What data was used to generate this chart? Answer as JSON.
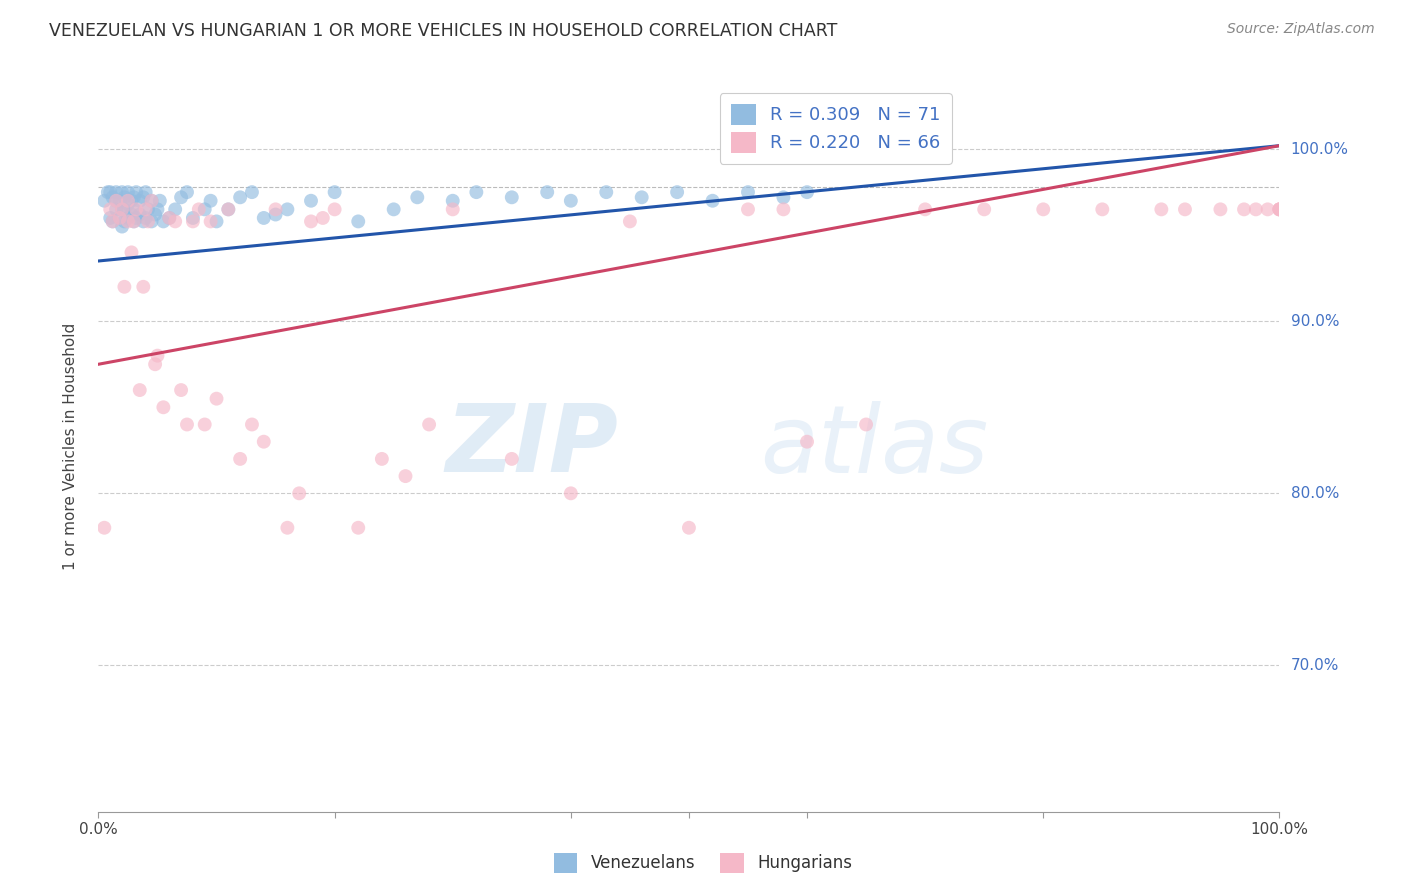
{
  "title": "VENEZUELAN VS HUNGARIAN 1 OR MORE VEHICLES IN HOUSEHOLD CORRELATION CHART",
  "source": "Source: ZipAtlas.com",
  "ylabel": "1 or more Vehicles in Household",
  "ytick_labels": [
    "100.0%",
    "90.0%",
    "80.0%",
    "70.0%"
  ],
  "ytick_values": [
    1.0,
    0.9,
    0.8,
    0.7
  ],
  "xlim": [
    0.0,
    1.0
  ],
  "ylim": [
    0.615,
    1.04
  ],
  "blue_R": 0.309,
  "blue_N": 71,
  "pink_R": 0.22,
  "pink_N": 66,
  "blue_legend": "Venezuelans",
  "pink_legend": "Hungarians",
  "blue_color": "#92bce0",
  "pink_color": "#f5b8c8",
  "blue_line_color": "#2255aa",
  "pink_line_color": "#cc4466",
  "watermark_zip": "ZIP",
  "watermark_atlas": "atlas",
  "venezuelan_x": [
    0.005,
    0.008,
    0.01,
    0.01,
    0.012,
    0.012,
    0.015,
    0.015,
    0.015,
    0.018,
    0.018,
    0.02,
    0.02,
    0.02,
    0.022,
    0.022,
    0.022,
    0.025,
    0.025,
    0.025,
    0.028,
    0.028,
    0.03,
    0.03,
    0.03,
    0.032,
    0.032,
    0.035,
    0.035,
    0.038,
    0.038,
    0.04,
    0.04,
    0.042,
    0.045,
    0.045,
    0.048,
    0.05,
    0.052,
    0.055,
    0.06,
    0.065,
    0.07,
    0.075,
    0.08,
    0.09,
    0.095,
    0.1,
    0.11,
    0.12,
    0.13,
    0.14,
    0.15,
    0.16,
    0.18,
    0.2,
    0.22,
    0.25,
    0.27,
    0.3,
    0.32,
    0.35,
    0.38,
    0.4,
    0.43,
    0.46,
    0.49,
    0.52,
    0.55,
    0.58,
    0.6
  ],
  "venezuelan_y": [
    0.97,
    0.975,
    0.96,
    0.975,
    0.958,
    0.972,
    0.965,
    0.97,
    0.975,
    0.96,
    0.97,
    0.955,
    0.965,
    0.975,
    0.958,
    0.965,
    0.972,
    0.96,
    0.968,
    0.975,
    0.962,
    0.97,
    0.958,
    0.965,
    0.972,
    0.96,
    0.975,
    0.962,
    0.97,
    0.958,
    0.972,
    0.96,
    0.975,
    0.965,
    0.958,
    0.97,
    0.962,
    0.965,
    0.97,
    0.958,
    0.96,
    0.965,
    0.972,
    0.975,
    0.96,
    0.965,
    0.97,
    0.958,
    0.965,
    0.972,
    0.975,
    0.96,
    0.962,
    0.965,
    0.97,
    0.975,
    0.958,
    0.965,
    0.972,
    0.97,
    0.975,
    0.972,
    0.975,
    0.97,
    0.975,
    0.972,
    0.975,
    0.97,
    0.975,
    0.972,
    0.975
  ],
  "hungarian_x": [
    0.005,
    0.01,
    0.012,
    0.015,
    0.018,
    0.02,
    0.022,
    0.025,
    0.025,
    0.028,
    0.03,
    0.032,
    0.035,
    0.038,
    0.04,
    0.042,
    0.045,
    0.048,
    0.05,
    0.055,
    0.06,
    0.065,
    0.07,
    0.075,
    0.08,
    0.085,
    0.09,
    0.095,
    0.1,
    0.11,
    0.12,
    0.13,
    0.14,
    0.15,
    0.16,
    0.17,
    0.18,
    0.19,
    0.2,
    0.22,
    0.24,
    0.26,
    0.28,
    0.3,
    0.35,
    0.4,
    0.45,
    0.5,
    0.55,
    0.58,
    0.6,
    0.65,
    0.7,
    0.75,
    0.8,
    0.85,
    0.9,
    0.92,
    0.95,
    0.97,
    0.98,
    0.99,
    1.0,
    1.0,
    1.0,
    1.0
  ],
  "hungarian_y": [
    0.78,
    0.965,
    0.958,
    0.97,
    0.96,
    0.965,
    0.92,
    0.958,
    0.97,
    0.94,
    0.958,
    0.965,
    0.86,
    0.92,
    0.965,
    0.958,
    0.97,
    0.875,
    0.88,
    0.85,
    0.96,
    0.958,
    0.86,
    0.84,
    0.958,
    0.965,
    0.84,
    0.958,
    0.855,
    0.965,
    0.82,
    0.84,
    0.83,
    0.965,
    0.78,
    0.8,
    0.958,
    0.96,
    0.965,
    0.78,
    0.82,
    0.81,
    0.84,
    0.965,
    0.82,
    0.8,
    0.958,
    0.78,
    0.965,
    0.965,
    0.83,
    0.84,
    0.965,
    0.965,
    0.965,
    0.965,
    0.965,
    0.965,
    0.965,
    0.965,
    0.965,
    0.965,
    0.965,
    0.965,
    0.965,
    0.965
  ]
}
